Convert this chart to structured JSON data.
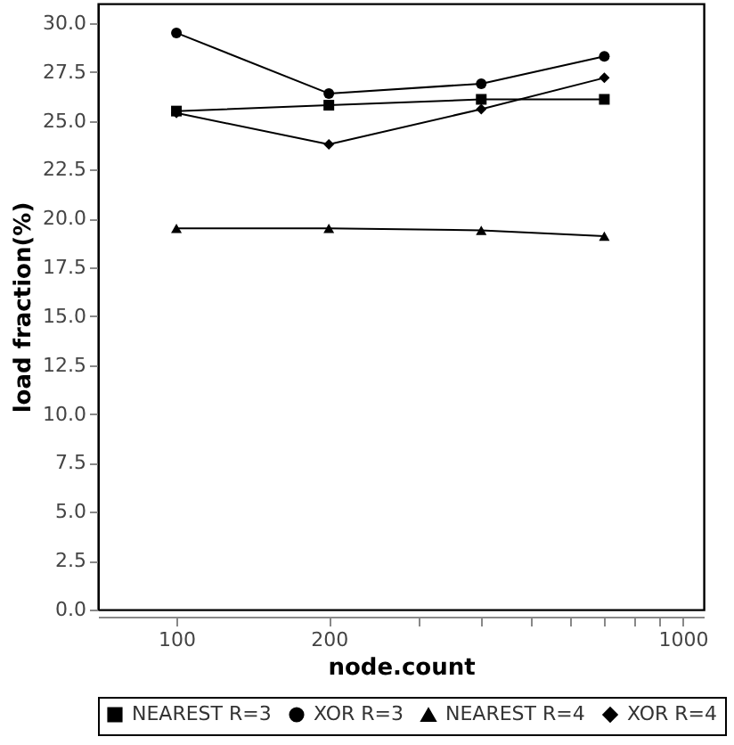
{
  "chart_data": {
    "type": "line",
    "xlabel": "node.count",
    "ylabel": "load fraction(%)",
    "x": [
      100,
      200,
      400,
      700
    ],
    "log": "x",
    "xlim": [
      70,
      1100
    ],
    "xticks": [
      100,
      200,
      {
        "value": 300,
        "label": null
      },
      {
        "value": 400,
        "label": null
      },
      {
        "value": 500,
        "label": null
      },
      {
        "value": 600,
        "label": null
      },
      {
        "value": 700,
        "label": null
      },
      {
        "value": 800,
        "label": null
      },
      {
        "value": 900,
        "label": null
      },
      1000
    ],
    "ylim": [
      0,
      31
    ],
    "yticks": [
      {
        "value": 0,
        "label": "0.0"
      },
      {
        "value": 2.5,
        "label": "2.5"
      },
      {
        "value": 5,
        "label": "5.0"
      },
      {
        "value": 7.5,
        "label": "7.5"
      },
      {
        "value": 10,
        "label": "10.0"
      },
      {
        "value": 12.5,
        "label": "12.5"
      },
      {
        "value": 15,
        "label": "15.0"
      },
      {
        "value": 17.5,
        "label": "17.5"
      },
      {
        "value": 20,
        "label": "20.0"
      },
      {
        "value": 22.5,
        "label": "22.5"
      },
      {
        "value": 25,
        "label": "25.0"
      },
      {
        "value": 27.5,
        "label": "27.5"
      },
      {
        "value": 30,
        "label": "30.0"
      }
    ],
    "grid": false,
    "legend": "bottom",
    "series": [
      {
        "name": "NEAREST R=3",
        "color": "#000000",
        "marker": "square",
        "values": [
          25.5,
          25.8,
          26.1,
          26.1
        ]
      },
      {
        "name": "XOR R=3",
        "color": "#000000",
        "marker": "circle",
        "values": [
          29.5,
          26.4,
          26.9,
          28.3
        ]
      },
      {
        "name": "NEAREST R=4",
        "color": "#000000",
        "marker": "triangle",
        "values": [
          19.5,
          19.5,
          19.4,
          19.1
        ]
      },
      {
        "name": "XOR R=4",
        "color": "#000000",
        "marker": "diamond",
        "values": [
          25.4,
          23.8,
          25.6,
          27.2
        ]
      }
    ]
  }
}
